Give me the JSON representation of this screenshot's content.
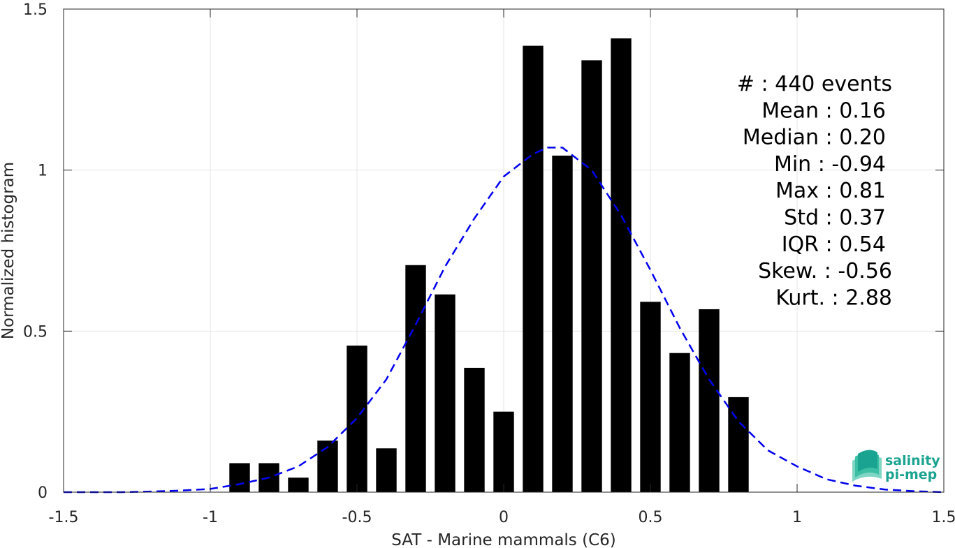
{
  "chart_data": {
    "type": "bar",
    "title": "",
    "xlabel": "SAT - Marine mammals (C6)",
    "ylabel": "Normalized histogram",
    "xlim": [
      -1.5,
      1.5
    ],
    "ylim": [
      0,
      1.5
    ],
    "grid": true,
    "xticks": [
      -1.5,
      -1,
      -0.5,
      0,
      0.5,
      1,
      1.5
    ],
    "xtick_labels": [
      "-1.5",
      "-1",
      "-0.5",
      "0",
      "0.5",
      "1",
      "1.5"
    ],
    "yticks": [
      0,
      0.5,
      1,
      1.5
    ],
    "ytick_labels": [
      "0",
      "0.5",
      "1",
      "1.5"
    ],
    "bar_width": 0.07,
    "bar_color": "#000000",
    "bars": [
      {
        "x": -0.9,
        "y": 0.09
      },
      {
        "x": -0.8,
        "y": 0.09
      },
      {
        "x": -0.7,
        "y": 0.045
      },
      {
        "x": -0.6,
        "y": 0.16
      },
      {
        "x": -0.5,
        "y": 0.455
      },
      {
        "x": -0.4,
        "y": 0.136
      },
      {
        "x": -0.3,
        "y": 0.705
      },
      {
        "x": -0.2,
        "y": 0.614
      },
      {
        "x": -0.1,
        "y": 0.386
      },
      {
        "x": 0.0,
        "y": 0.25
      },
      {
        "x": 0.1,
        "y": 1.386
      },
      {
        "x": 0.2,
        "y": 1.045
      },
      {
        "x": 0.3,
        "y": 1.341
      },
      {
        "x": 0.4,
        "y": 1.409
      },
      {
        "x": 0.5,
        "y": 0.591
      },
      {
        "x": 0.6,
        "y": 0.432
      },
      {
        "x": 0.7,
        "y": 0.568
      },
      {
        "x": 0.8,
        "y": 0.295
      }
    ],
    "fit_curve": {
      "style": "dashed",
      "color": "#0000ee",
      "x": [
        -1.5,
        -1.4,
        -1.3,
        -1.2,
        -1.1,
        -1.0,
        -0.9,
        -0.8,
        -0.7,
        -0.6,
        -0.5,
        -0.4,
        -0.3,
        -0.2,
        -0.1,
        0.0,
        0.1,
        0.15,
        0.2,
        0.3,
        0.4,
        0.5,
        0.6,
        0.7,
        0.8,
        0.9,
        1.0,
        1.1,
        1.2,
        1.3,
        1.4,
        1.5
      ],
      "y": [
        0.0,
        0.0,
        0.0,
        0.002,
        0.005,
        0.01,
        0.025,
        0.045,
        0.08,
        0.14,
        0.23,
        0.35,
        0.52,
        0.7,
        0.85,
        0.98,
        1.05,
        1.07,
        1.07,
        1.0,
        0.86,
        0.69,
        0.51,
        0.35,
        0.22,
        0.13,
        0.08,
        0.04,
        0.02,
        0.008,
        0.003,
        0.0
      ]
    },
    "annotations": [
      {
        "label": "#  : 440 events"
      },
      {
        "label": "Mean : 0.16"
      },
      {
        "label": "Median : 0.20"
      },
      {
        "label": "Min : -0.94"
      },
      {
        "label": "Max : 0.81"
      },
      {
        "label": "Std : 0.37"
      },
      {
        "label": "IQR : 0.54"
      },
      {
        "label": "Skew. : -0.56"
      },
      {
        "label": "Kurt. : 2.88"
      }
    ]
  },
  "logo": {
    "line1": "salinity",
    "line2": "pi-mep",
    "icon": "wave-logo-icon",
    "color": "#1aa390"
  }
}
